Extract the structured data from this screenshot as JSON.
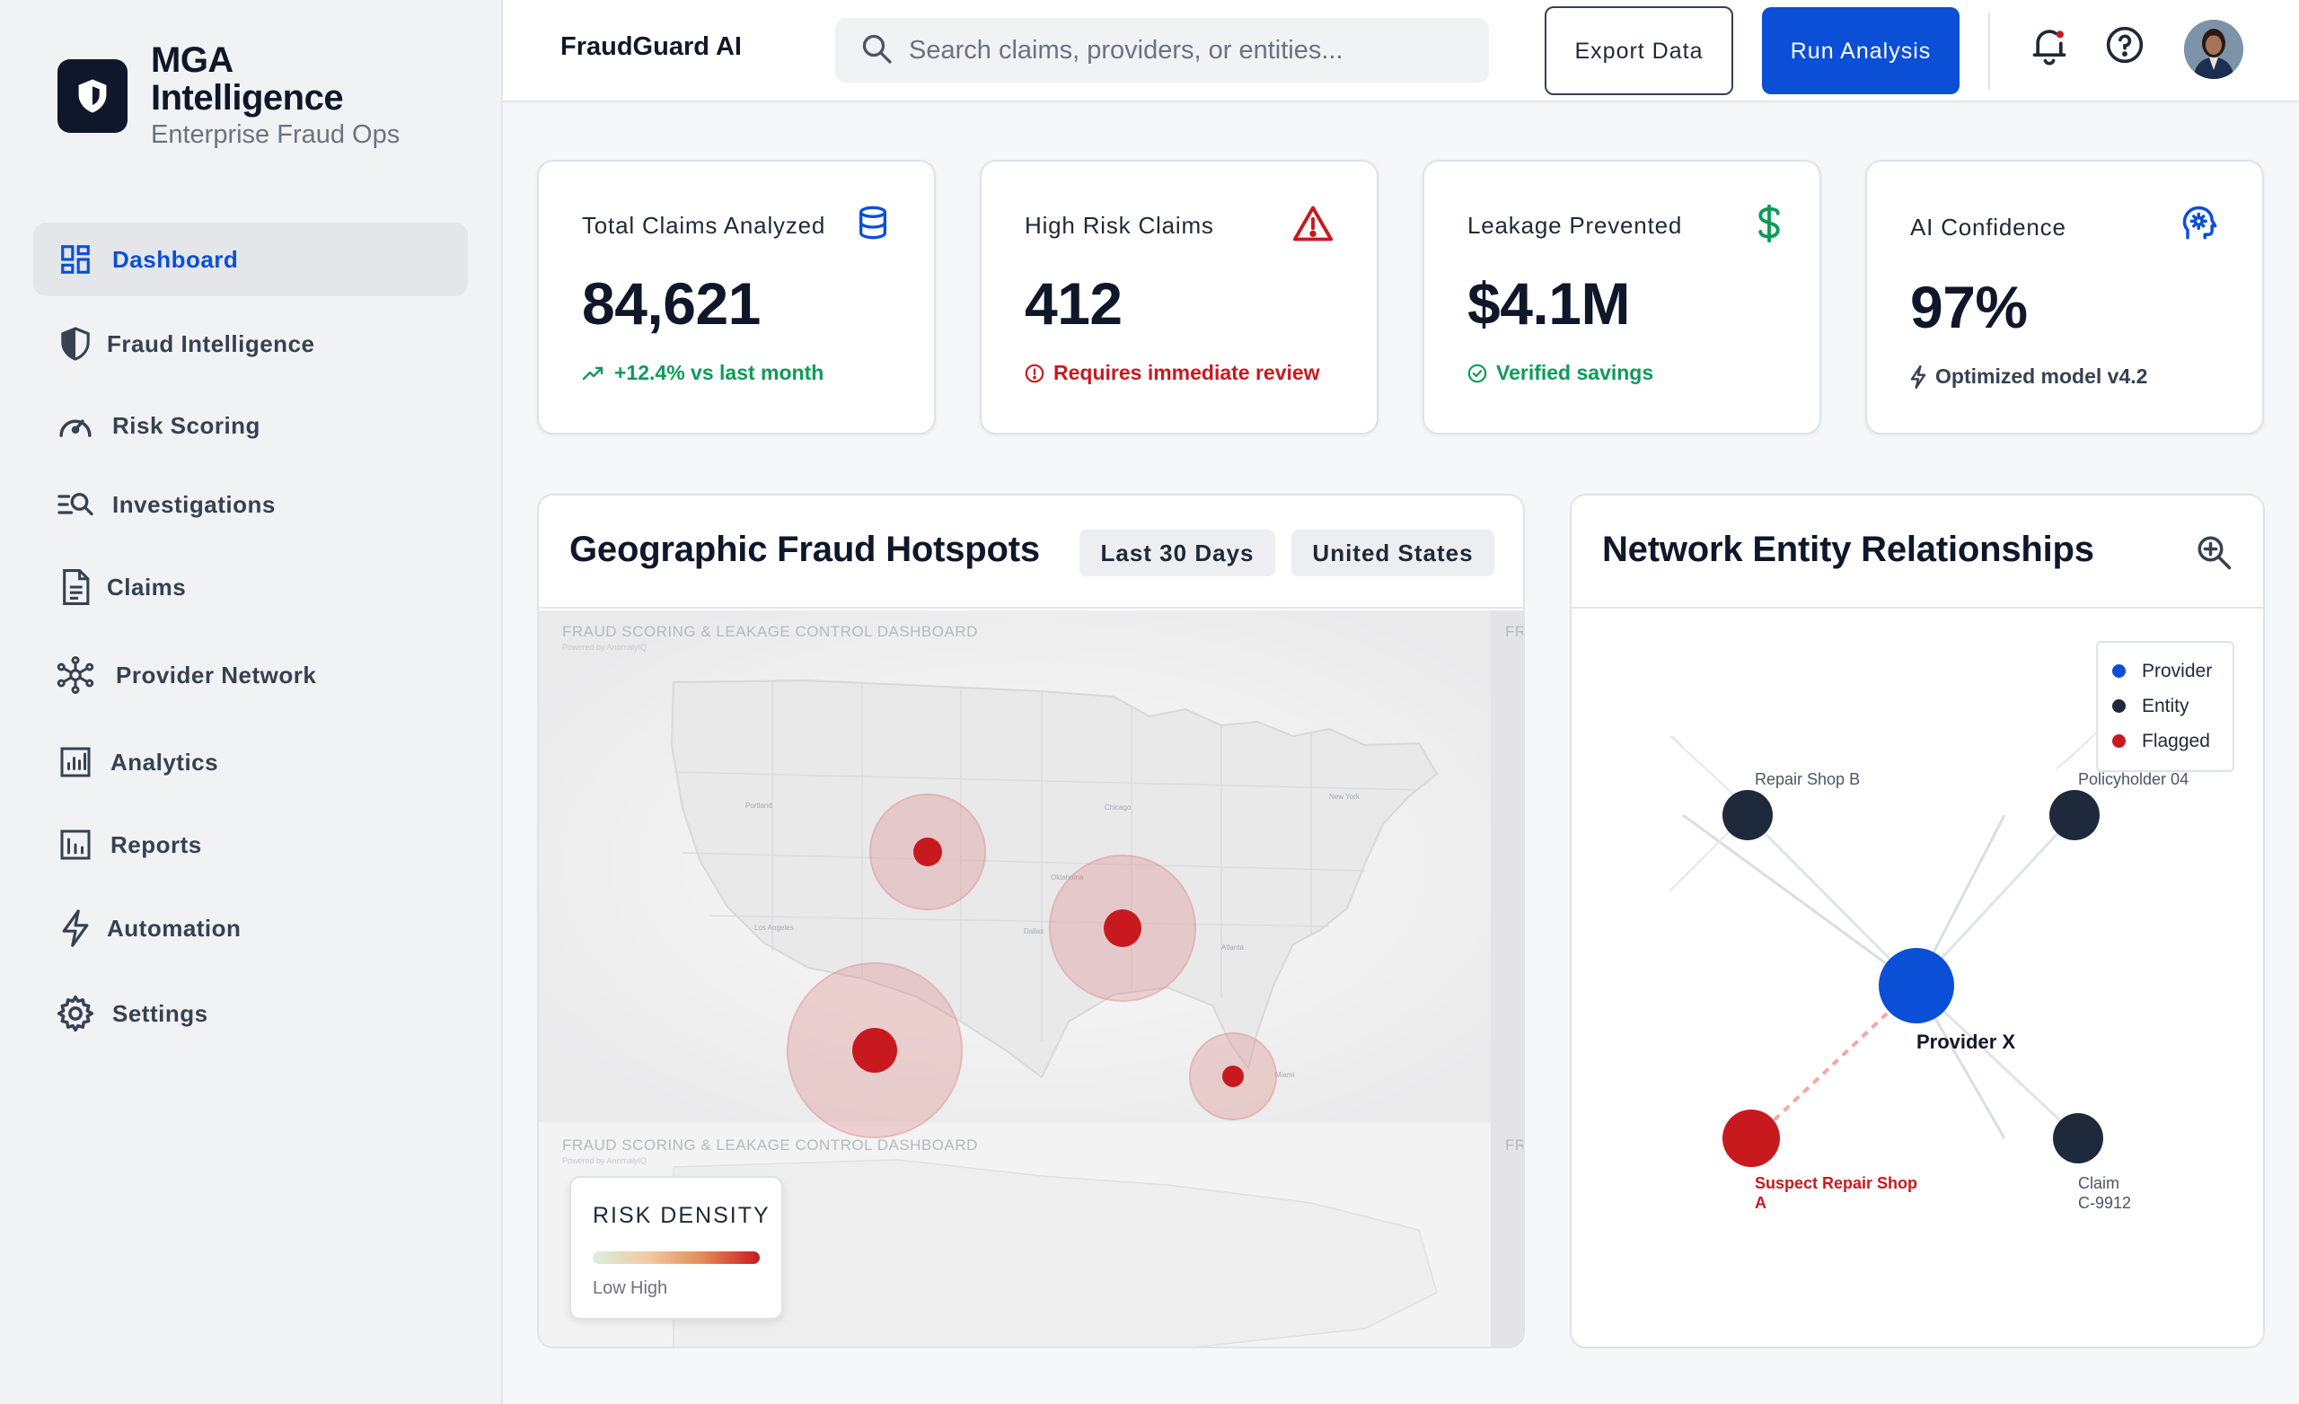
{
  "brand": {
    "name_line1": "MGA",
    "name_line2": "Intelligence",
    "subtitle": "Enterprise Fraud Ops"
  },
  "sidebar": {
    "items": [
      {
        "label": "Dashboard",
        "icon": "dashboard-icon",
        "active": true
      },
      {
        "label": "Fraud Intelligence",
        "icon": "shield-icon"
      },
      {
        "label": "Risk Scoring",
        "icon": "gauge-icon"
      },
      {
        "label": "Investigations",
        "icon": "list-search-icon"
      },
      {
        "label": "Claims",
        "icon": "document-icon"
      },
      {
        "label": "Provider Network",
        "icon": "network-icon"
      },
      {
        "label": "Analytics",
        "icon": "analytics-icon"
      },
      {
        "label": "Reports",
        "icon": "bar-chart-icon"
      },
      {
        "label": "Automation",
        "icon": "bolt-icon"
      },
      {
        "label": "Settings",
        "icon": "gear-icon"
      }
    ]
  },
  "topbar": {
    "app_title": "FraudGuard AI",
    "search_placeholder": "Search claims, providers, or entities...",
    "export_label": "Export Data",
    "run_label": "Run Analysis"
  },
  "kpis": [
    {
      "title": "Total Claims Analyzed",
      "value": "84,621",
      "foot": "+12.4% vs last month",
      "icon": "database-icon"
    },
    {
      "title": "High Risk Claims",
      "value": "412",
      "foot": "Requires immediate review",
      "icon": "warning-icon"
    },
    {
      "title": "Leakage Prevented",
      "value": "$4.1M",
      "foot": "Verified savings",
      "icon": "dollar-icon"
    },
    {
      "title": "AI Confidence",
      "value": "97%",
      "foot": "Optimized model v4.2",
      "icon": "ai-gear-icon"
    }
  ],
  "hotspots_panel": {
    "title": "Geographic Fraud Hotspots",
    "filter_period": "Last 30 Days",
    "filter_region": "United States",
    "map_tile_label": "FRAUD SCORING & LEAKAGE CONTROL DASHBOARD",
    "map_tile_sub": "Powered by AnomalyIQ",
    "map_tile_label_cut": "FR",
    "legend_title": "RISK DENSITY",
    "legend_low": "Low",
    "legend_high": "High"
  },
  "network_panel": {
    "title": "Network Entity Relationships",
    "legend": [
      {
        "label": "Provider",
        "color": "#0b4fd6"
      },
      {
        "label": "Entity",
        "color": "#1e293b"
      },
      {
        "label": "Flagged",
        "color": "#c8191f"
      }
    ],
    "nodes": {
      "repair_shop_b": "Repair Shop B",
      "policyholder": "Policyholder 04",
      "provider_x": "Provider X",
      "suspect_line1": "Suspect Repair Shop",
      "suspect_line2": "A",
      "claim_line1": "Claim",
      "claim_line2": "C-9912"
    }
  },
  "colors": {
    "accent": "#0b4fd6",
    "danger": "#c8191f",
    "success": "#0f9a5a",
    "navy": "#0f172a"
  }
}
